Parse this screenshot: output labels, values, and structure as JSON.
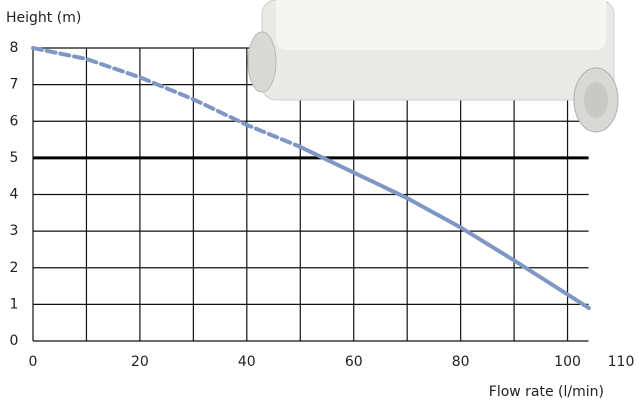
{
  "chart_data": {
    "type": "line",
    "ylabel": "Height (m)",
    "xlabel": "Flow rate (l/min)",
    "xlim": [
      0,
      110
    ],
    "xticks": [
      0,
      20,
      40,
      60,
      80,
      100,
      110
    ],
    "ylim": [
      0,
      8
    ],
    "yticks": [
      0,
      1,
      2,
      3,
      4,
      5,
      6,
      7,
      8
    ],
    "grid": true,
    "reference_line": {
      "value": 5,
      "color": "#000000"
    },
    "series": [
      {
        "color": "#7f97c4",
        "style": "dashed",
        "x": [
          0,
          10,
          20,
          30,
          40,
          50
        ],
        "values": [
          8,
          7.7,
          7.2,
          6.6,
          5.9,
          5.3
        ]
      },
      {
        "color": "#7f97c4",
        "style": "solid",
        "x": [
          50,
          60,
          70,
          80,
          90,
          104
        ],
        "values": [
          5.3,
          4.6,
          3.9,
          3.1,
          2.2,
          0.9
        ]
      }
    ]
  }
}
